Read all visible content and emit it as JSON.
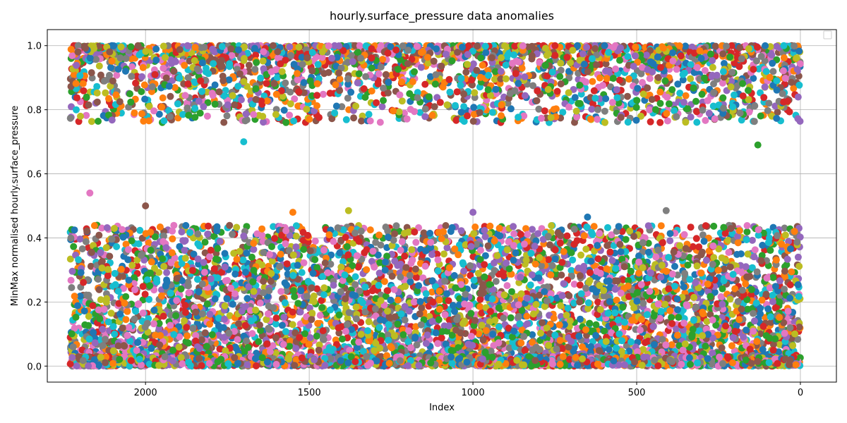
{
  "chart_data": {
    "type": "scatter",
    "title": "hourly.surface_pressure data anomalies",
    "xlabel": "Index",
    "ylabel": "MinMax normalised hourly.surface_pressure",
    "xlim": [
      2300,
      -110
    ],
    "ylim": [
      -0.05,
      1.05
    ],
    "x_inverted": true,
    "x_ticks": [
      2000,
      1500,
      1000,
      500,
      0
    ],
    "y_ticks": [
      0.0,
      0.2,
      0.4,
      0.6,
      0.8,
      1.0
    ],
    "y_tick_labels": [
      "0.0",
      "0.2",
      "0.4",
      "0.6",
      "0.8",
      "1.0"
    ],
    "grid": true,
    "legend": {
      "placement": "top-right",
      "entries": []
    },
    "x_range": [
      0,
      2230
    ],
    "colors": [
      "#1f77b4",
      "#ff7f0e",
      "#2ca02c",
      "#d62728",
      "#9467bd",
      "#8c564b",
      "#e377c2",
      "#7f7f7f",
      "#bcbd22",
      "#17becf"
    ],
    "clusters": [
      {
        "name": "high",
        "y_range": [
          0.69,
          1.0
        ],
        "y_mode": 0.95
      },
      {
        "name": "low",
        "y_range": [
          0.0,
          0.54
        ],
        "y_mode": 0.1
      }
    ],
    "outliers": [
      {
        "x": 2170,
        "y": 0.54
      },
      {
        "x": 1700,
        "y": 0.7
      },
      {
        "x": 130,
        "y": 0.69
      },
      {
        "x": 2000,
        "y": 0.5
      },
      {
        "x": 1380,
        "y": 0.485
      },
      {
        "x": 1550,
        "y": 0.48
      },
      {
        "x": 1000,
        "y": 0.48
      },
      {
        "x": 410,
        "y": 0.485
      },
      {
        "x": 650,
        "y": 0.465
      }
    ]
  }
}
